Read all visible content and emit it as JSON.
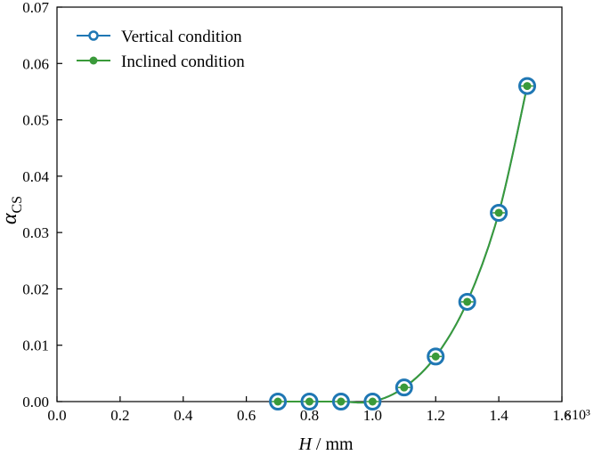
{
  "chart_data": {
    "type": "line",
    "xlabel": "H / mm",
    "xlabel_italic": "H",
    "xlabel_rest": " / mm",
    "ylabel_symbol": "α",
    "ylabel_subscript": "CS",
    "x_multiplier": "×10³",
    "xlim": [
      0.0,
      1.6
    ],
    "ylim": [
      0.0,
      0.07
    ],
    "xticks": [
      "0.0",
      "0.2",
      "0.4",
      "0.6",
      "0.8",
      "1.0",
      "1.2",
      "1.4",
      "1.6"
    ],
    "yticks": [
      "0.00",
      "0.01",
      "0.02",
      "0.03",
      "0.04",
      "0.05",
      "0.06",
      "0.07"
    ],
    "xtick_values": [
      0.0,
      0.2,
      0.4,
      0.6,
      0.8,
      1.0,
      1.2,
      1.4,
      1.6
    ],
    "ytick_values": [
      0.0,
      0.01,
      0.02,
      0.03,
      0.04,
      0.05,
      0.06,
      0.07
    ],
    "legend_position": "top-left",
    "grid": false,
    "series": [
      {
        "name": "Vertical condition",
        "color": "#1f77b4",
        "marker": "open-circle",
        "x": [
          0.7,
          0.8,
          0.9,
          1.0,
          1.1,
          1.2,
          1.3,
          1.4,
          1.49
        ],
        "y": [
          0.0,
          0.0,
          0.0,
          0.0,
          0.0025,
          0.008,
          0.0177,
          0.0335,
          0.056
        ]
      },
      {
        "name": "Inclined condition",
        "color": "#3a9a3a",
        "marker": "filled-circle",
        "x": [
          0.7,
          0.8,
          0.9,
          1.0,
          1.1,
          1.2,
          1.3,
          1.4,
          1.49
        ],
        "y": [
          0.0,
          0.0,
          0.0,
          0.0,
          0.0025,
          0.008,
          0.0177,
          0.0335,
          0.056
        ]
      }
    ]
  }
}
